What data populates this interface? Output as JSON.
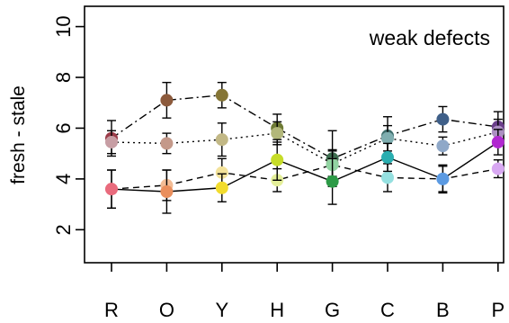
{
  "chart_data": {
    "type": "line",
    "categories": [
      "R",
      "O",
      "Y",
      "H",
      "G",
      "C",
      "B",
      "P"
    ],
    "ylabel": "fresh - stale",
    "xlabel": "",
    "ylim": [
      0.7,
      10.8
    ],
    "yticks": [
      2,
      4,
      6,
      8,
      10
    ],
    "annotation": "weak defects",
    "legend": "none",
    "grid": false,
    "series": [
      {
        "line_style": "dashdot",
        "values": [
          5.6,
          7.1,
          7.3,
          6.0,
          4.8,
          5.7,
          6.35,
          6.05
        ],
        "err": [
          0.7,
          0.7,
          0.5,
          0.55,
          1.1,
          0.75,
          0.5,
          0.6
        ],
        "colors": [
          "#9b3b48",
          "#8c5a3c",
          "#857535",
          "#6e7a34",
          "#3e6e50",
          "#3e6d6c",
          "#3f5f88",
          "#6a3e8a"
        ]
      },
      {
        "line_style": "dotted",
        "values": [
          5.45,
          5.4,
          5.55,
          5.8,
          4.6,
          5.6,
          5.3,
          5.85
        ],
        "err": [
          0.45,
          0.4,
          0.65,
          0.45,
          0.5,
          0.5,
          0.35,
          0.5
        ],
        "colors": [
          "#c79ea4",
          "#c4998a",
          "#c2b886",
          "#b2b77a",
          "#86a387",
          "#7faeb0",
          "#8fa8c8",
          "#ac8fc2"
        ]
      },
      {
        "line_style": "dashed",
        "values": [
          3.6,
          3.75,
          4.25,
          3.95,
          4.55,
          4.05,
          4.0,
          4.4
        ],
        "err": [
          0.75,
          0.6,
          0.55,
          0.45,
          0.6,
          0.55,
          0.55,
          0.35
        ],
        "colors": [
          "#ee9fa9",
          "#f3bc95",
          "#f3e29a",
          "#e4ef9a",
          "#92d4a2",
          "#95e0e0",
          "#a9c9f0",
          "#d8a8f2"
        ]
      },
      {
        "line_style": "solid",
        "values": [
          3.6,
          3.5,
          3.65,
          4.75,
          3.9,
          4.85,
          4.0,
          5.45
        ],
        "err": [
          0.75,
          0.85,
          0.55,
          0.8,
          0.9,
          0.55,
          0.5,
          0.5
        ],
        "colors": [
          "#e96b7d",
          "#ea8f5d",
          "#f2dc2e",
          "#c6dc29",
          "#2c9a46",
          "#2aaeb0",
          "#5b9ae2",
          "#b128d0"
        ]
      }
    ]
  }
}
